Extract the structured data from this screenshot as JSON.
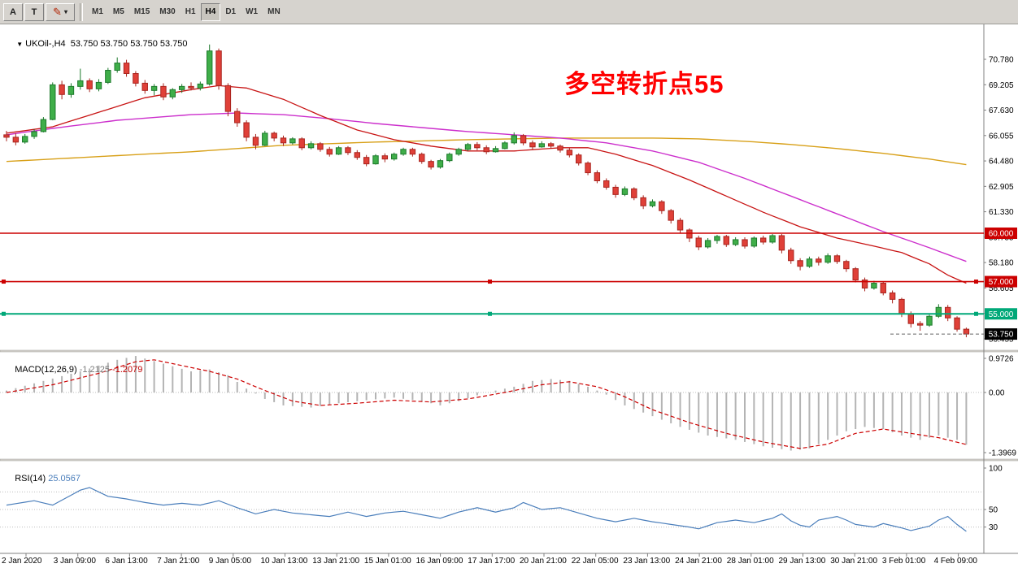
{
  "toolbar": {
    "left_buttons": [
      {
        "id": "text-tool",
        "label": "A"
      },
      {
        "id": "label-tool",
        "label": "T"
      }
    ],
    "draw_dropdown": {
      "icon": "pencil-icon",
      "glyph": "✎",
      "caret": "▾"
    },
    "timeframes": [
      "M1",
      "M5",
      "M15",
      "M30",
      "H1",
      "H4",
      "D1",
      "W1",
      "MN"
    ],
    "active_timeframe": "H4"
  },
  "main_chart": {
    "collapse_arrow": "▼",
    "symbol_label": "UKOil-,H4",
    "ohlc_text": "53.750 53.750 53.750 53.750",
    "annotation": {
      "text": "多空转折点55",
      "color": "#ff0000"
    },
    "price_axis_values": [
      70.78,
      69.205,
      67.63,
      66.055,
      64.48,
      62.905,
      61.33,
      59.755,
      58.18,
      56.605,
      55.03,
      53.455
    ],
    "hlines": [
      {
        "price": 60.0,
        "label": "60.000",
        "color": "#cc0000",
        "handles": false
      },
      {
        "price": 57.0,
        "label": "57.000",
        "color": "#cc0000",
        "handles": true
      },
      {
        "price": 55.0,
        "label": "55.000",
        "color": "#00a878",
        "handles": true
      }
    ],
    "current_price": {
      "value": 53.75,
      "label": "53.750",
      "badge_color": "#000000"
    }
  },
  "macd_panel": {
    "label": "MACD(12,26,9)",
    "value_main": "-1.2125",
    "value_signal": "-1.2079",
    "axis": [
      {
        "text": "0.9726",
        "value": 0.9726
      },
      {
        "text": "0.00",
        "value": 0.0
      },
      {
        "text": "-1.3969",
        "value": -1.3969
      }
    ]
  },
  "rsi_panel": {
    "label": "RSI(14)",
    "value": "25.0567",
    "axis": [
      {
        "text": "100",
        "value": 100
      },
      {
        "text": "50",
        "value": 50
      },
      {
        "text": "30",
        "value": 30
      }
    ],
    "levels": [
      70,
      50,
      30
    ]
  },
  "time_axis": [
    "2 Jan 2020",
    "3 Jan 09:00",
    "6 Jan 13:00",
    "7 Jan 21:00",
    "9 Jan 05:00",
    "10 Jan 13:00",
    "13 Jan 21:00",
    "15 Jan 01:00",
    "16 Jan 09:00",
    "17 Jan 17:00",
    "20 Jan 21:00",
    "22 Jan 05:00",
    "23 Jan 13:00",
    "24 Jan 21:00",
    "28 Jan 01:00",
    "29 Jan 13:00",
    "30 Jan 21:00",
    "3 Feb 01:00",
    "4 Feb 09:00"
  ],
  "colors": {
    "up_fill": "#3fae49",
    "up_stroke": "#1d7a2c",
    "down_fill": "#e04038",
    "down_stroke": "#a8241e",
    "ma_red": "#c81414",
    "ma_magenta": "#cc2fcc",
    "ma_orange": "#d8a018",
    "macd_bar": "#b4b4b4",
    "macd_signal": "#cc0000",
    "rsi_line": "#4a7ebb",
    "axis_text": "#000000",
    "grid_dotted": "#bdbdbd"
  },
  "chart_data": {
    "type": "candlestick+indicators",
    "symbol": "UKOil-",
    "period": "H4",
    "price_range": [
      52.8,
      72.9
    ],
    "candles": [
      [
        66.1,
        66.35,
        65.7,
        65.95
      ],
      [
        65.95,
        66.2,
        65.45,
        65.65
      ],
      [
        65.65,
        66.15,
        65.55,
        66.0
      ],
      [
        66.0,
        66.45,
        65.85,
        66.3
      ],
      [
        66.3,
        67.2,
        66.25,
        67.05
      ],
      [
        67.05,
        69.35,
        67.0,
        69.2
      ],
      [
        69.2,
        69.45,
        68.3,
        68.6
      ],
      [
        68.6,
        69.3,
        68.4,
        69.1
      ],
      [
        69.1,
        70.2,
        68.9,
        69.45
      ],
      [
        69.45,
        69.6,
        68.75,
        68.95
      ],
      [
        68.95,
        69.55,
        68.8,
        69.35
      ],
      [
        69.35,
        70.25,
        69.25,
        70.1
      ],
      [
        70.1,
        70.9,
        69.95,
        70.55
      ],
      [
        70.55,
        70.75,
        69.7,
        69.9
      ],
      [
        69.9,
        70.05,
        69.1,
        69.3
      ],
      [
        69.3,
        69.5,
        68.65,
        68.85
      ],
      [
        68.85,
        69.25,
        68.55,
        69.1
      ],
      [
        69.1,
        69.3,
        68.25,
        68.45
      ],
      [
        68.45,
        69.0,
        68.3,
        68.9
      ],
      [
        68.9,
        69.25,
        68.7,
        69.1
      ],
      [
        69.1,
        69.35,
        68.85,
        69.0
      ],
      [
        69.0,
        69.4,
        68.85,
        69.25
      ],
      [
        69.25,
        71.7,
        69.15,
        71.3
      ],
      [
        71.3,
        71.45,
        68.9,
        69.15
      ],
      [
        69.15,
        69.3,
        67.25,
        67.55
      ],
      [
        67.55,
        67.75,
        66.6,
        66.85
      ],
      [
        66.85,
        67.0,
        65.7,
        65.95
      ],
      [
        65.95,
        66.15,
        65.2,
        65.45
      ],
      [
        65.45,
        66.35,
        65.4,
        66.2
      ],
      [
        66.2,
        66.3,
        65.7,
        65.9
      ],
      [
        65.9,
        66.05,
        65.4,
        65.6
      ],
      [
        65.6,
        65.95,
        65.5,
        65.85
      ],
      [
        65.85,
        65.95,
        65.15,
        65.3
      ],
      [
        65.3,
        65.7,
        65.2,
        65.55
      ],
      [
        65.55,
        65.65,
        65.05,
        65.2
      ],
      [
        65.2,
        65.35,
        64.75,
        64.9
      ],
      [
        64.9,
        65.4,
        64.85,
        65.3
      ],
      [
        65.3,
        65.4,
        64.85,
        65.0
      ],
      [
        65.0,
        65.15,
        64.55,
        64.7
      ],
      [
        64.7,
        64.85,
        64.15,
        64.3
      ],
      [
        64.3,
        64.9,
        64.25,
        64.8
      ],
      [
        64.8,
        64.95,
        64.4,
        64.6
      ],
      [
        64.6,
        65.0,
        64.5,
        64.9
      ],
      [
        64.9,
        65.3,
        64.8,
        65.2
      ],
      [
        65.2,
        65.3,
        64.75,
        64.9
      ],
      [
        64.9,
        65.0,
        64.3,
        64.45
      ],
      [
        64.45,
        64.55,
        63.95,
        64.1
      ],
      [
        64.1,
        64.6,
        64.0,
        64.5
      ],
      [
        64.5,
        65.0,
        64.4,
        64.9
      ],
      [
        64.9,
        65.3,
        64.8,
        65.2
      ],
      [
        65.2,
        65.6,
        65.1,
        65.5
      ],
      [
        65.5,
        65.65,
        65.15,
        65.3
      ],
      [
        65.3,
        65.45,
        64.9,
        65.05
      ],
      [
        65.05,
        65.4,
        65.0,
        65.25
      ],
      [
        65.25,
        65.7,
        65.2,
        65.6
      ],
      [
        65.6,
        66.25,
        65.5,
        66.05
      ],
      [
        66.05,
        66.15,
        65.45,
        65.6
      ],
      [
        65.6,
        65.75,
        65.2,
        65.35
      ],
      [
        65.35,
        65.7,
        65.3,
        65.55
      ],
      [
        65.55,
        65.65,
        65.25,
        65.4
      ],
      [
        65.4,
        65.5,
        65.0,
        65.15
      ],
      [
        65.15,
        65.3,
        64.7,
        64.85
      ],
      [
        64.85,
        64.95,
        64.2,
        64.35
      ],
      [
        64.35,
        64.45,
        63.6,
        63.75
      ],
      [
        63.75,
        63.9,
        63.1,
        63.25
      ],
      [
        63.25,
        63.4,
        62.7,
        62.85
      ],
      [
        62.85,
        63.0,
        62.2,
        62.4
      ],
      [
        62.4,
        62.9,
        62.3,
        62.75
      ],
      [
        62.75,
        62.85,
        62.05,
        62.2
      ],
      [
        62.2,
        62.35,
        61.5,
        61.7
      ],
      [
        61.7,
        62.1,
        61.6,
        61.95
      ],
      [
        61.95,
        62.05,
        61.2,
        61.4
      ],
      [
        61.4,
        61.5,
        60.6,
        60.8
      ],
      [
        60.8,
        60.95,
        60.0,
        60.2
      ],
      [
        60.2,
        60.3,
        59.45,
        59.7
      ],
      [
        59.7,
        59.85,
        58.95,
        59.15
      ],
      [
        59.15,
        59.7,
        59.05,
        59.55
      ],
      [
        59.55,
        59.9,
        59.35,
        59.8
      ],
      [
        59.8,
        59.9,
        59.15,
        59.3
      ],
      [
        59.3,
        59.75,
        59.2,
        59.6
      ],
      [
        59.6,
        59.75,
        59.05,
        59.2
      ],
      [
        59.2,
        59.8,
        59.1,
        59.7
      ],
      [
        59.7,
        59.85,
        59.3,
        59.45
      ],
      [
        59.45,
        59.95,
        59.35,
        59.85
      ],
      [
        59.85,
        59.95,
        58.75,
        58.95
      ],
      [
        58.95,
        59.1,
        58.1,
        58.3
      ],
      [
        58.3,
        58.45,
        57.7,
        57.95
      ],
      [
        57.95,
        58.55,
        57.85,
        58.4
      ],
      [
        58.4,
        58.55,
        58.0,
        58.2
      ],
      [
        58.2,
        58.75,
        58.1,
        58.6
      ],
      [
        58.6,
        58.7,
        58.1,
        58.25
      ],
      [
        58.25,
        58.35,
        57.6,
        57.8
      ],
      [
        57.8,
        57.9,
        56.95,
        57.1
      ],
      [
        57.1,
        57.25,
        56.4,
        56.6
      ],
      [
        56.6,
        57.05,
        56.5,
        56.9
      ],
      [
        56.9,
        57.0,
        56.15,
        56.3
      ],
      [
        56.3,
        56.45,
        55.65,
        55.9
      ],
      [
        55.9,
        56.0,
        54.8,
        55.0
      ],
      [
        55.0,
        55.15,
        54.15,
        54.4
      ],
      [
        54.4,
        54.55,
        53.95,
        54.3
      ],
      [
        54.3,
        54.95,
        54.2,
        54.85
      ],
      [
        54.85,
        55.6,
        54.75,
        55.4
      ],
      [
        55.4,
        55.55,
        54.55,
        54.75
      ],
      [
        54.75,
        54.85,
        53.9,
        54.05
      ],
      [
        54.05,
        54.15,
        53.55,
        53.75
      ]
    ],
    "ma_red_anchors": [
      [
        0,
        66.2
      ],
      [
        5,
        66.6
      ],
      [
        10,
        67.5
      ],
      [
        15,
        68.4
      ],
      [
        20,
        68.9
      ],
      [
        23,
        69.15
      ],
      [
        26,
        69.0
      ],
      [
        30,
        68.3
      ],
      [
        34,
        67.3
      ],
      [
        38,
        66.4
      ],
      [
        42,
        65.8
      ],
      [
        46,
        65.4
      ],
      [
        50,
        65.1
      ],
      [
        55,
        65.1
      ],
      [
        60,
        65.3
      ],
      [
        63,
        65.3
      ],
      [
        66,
        64.9
      ],
      [
        70,
        64.2
      ],
      [
        74,
        63.3
      ],
      [
        78,
        62.3
      ],
      [
        82,
        61.3
      ],
      [
        86,
        60.4
      ],
      [
        90,
        59.7
      ],
      [
        94,
        59.2
      ],
      [
        97,
        58.8
      ],
      [
        100,
        58.1
      ],
      [
        102,
        57.4
      ],
      [
        104,
        56.9
      ]
    ],
    "ma_magenta_anchors": [
      [
        0,
        66.1
      ],
      [
        5,
        66.5
      ],
      [
        12,
        67.0
      ],
      [
        20,
        67.35
      ],
      [
        25,
        67.45
      ],
      [
        30,
        67.35
      ],
      [
        35,
        67.1
      ],
      [
        40,
        66.8
      ],
      [
        45,
        66.55
      ],
      [
        50,
        66.3
      ],
      [
        55,
        66.1
      ],
      [
        60,
        65.9
      ],
      [
        65,
        65.6
      ],
      [
        70,
        65.1
      ],
      [
        75,
        64.4
      ],
      [
        80,
        63.4
      ],
      [
        85,
        62.3
      ],
      [
        90,
        61.2
      ],
      [
        95,
        60.1
      ],
      [
        100,
        59.1
      ],
      [
        104,
        58.25
      ]
    ],
    "ma_orange_anchors": [
      [
        0,
        64.45
      ],
      [
        10,
        64.75
      ],
      [
        20,
        65.05
      ],
      [
        30,
        65.45
      ],
      [
        40,
        65.65
      ],
      [
        50,
        65.8
      ],
      [
        60,
        65.9
      ],
      [
        70,
        65.9
      ],
      [
        75,
        65.85
      ],
      [
        80,
        65.7
      ],
      [
        85,
        65.5
      ],
      [
        90,
        65.25
      ],
      [
        95,
        64.95
      ],
      [
        100,
        64.6
      ],
      [
        104,
        64.25
      ]
    ],
    "macd_range": [
      -1.3969,
      0.9726
    ],
    "macd_main_anchors": [
      [
        0,
        0.05
      ],
      [
        4,
        0.3
      ],
      [
        8,
        0.55
      ],
      [
        12,
        0.85
      ],
      [
        14,
        0.95
      ],
      [
        17,
        0.75
      ],
      [
        20,
        0.55
      ],
      [
        22,
        0.6
      ],
      [
        24,
        0.45
      ],
      [
        26,
        0.1
      ],
      [
        28,
        -0.15
      ],
      [
        30,
        -0.3
      ],
      [
        33,
        -0.35
      ],
      [
        36,
        -0.25
      ],
      [
        39,
        -0.18
      ],
      [
        42,
        -0.12
      ],
      [
        45,
        -0.2
      ],
      [
        47,
        -0.3
      ],
      [
        49,
        -0.2
      ],
      [
        52,
        0.0
      ],
      [
        55,
        0.15
      ],
      [
        57,
        0.3
      ],
      [
        59,
        0.35
      ],
      [
        61,
        0.3
      ],
      [
        63,
        0.15
      ],
      [
        65,
        -0.05
      ],
      [
        67,
        -0.3
      ],
      [
        70,
        -0.55
      ],
      [
        73,
        -0.8
      ],
      [
        76,
        -1.0
      ],
      [
        79,
        -1.1
      ],
      [
        82,
        -1.25
      ],
      [
        85,
        -1.35
      ],
      [
        87,
        -1.3
      ],
      [
        89,
        -1.1
      ],
      [
        91,
        -0.9
      ],
      [
        93,
        -0.8
      ],
      [
        95,
        -0.85
      ],
      [
        97,
        -1.0
      ],
      [
        99,
        -1.1
      ],
      [
        101,
        -1.0
      ],
      [
        103,
        -1.1
      ],
      [
        104,
        -1.2125
      ]
    ],
    "macd_signal_anchors": [
      [
        0,
        0.0
      ],
      [
        5,
        0.2
      ],
      [
        10,
        0.5
      ],
      [
        14,
        0.8
      ],
      [
        16,
        0.85
      ],
      [
        19,
        0.7
      ],
      [
        22,
        0.55
      ],
      [
        25,
        0.35
      ],
      [
        28,
        0.05
      ],
      [
        31,
        -0.2
      ],
      [
        34,
        -0.3
      ],
      [
        38,
        -0.25
      ],
      [
        42,
        -0.18
      ],
      [
        46,
        -0.22
      ],
      [
        50,
        -0.15
      ],
      [
        54,
        0.0
      ],
      [
        58,
        0.2
      ],
      [
        61,
        0.28
      ],
      [
        64,
        0.15
      ],
      [
        67,
        -0.1
      ],
      [
        70,
        -0.4
      ],
      [
        74,
        -0.7
      ],
      [
        78,
        -0.95
      ],
      [
        82,
        -1.15
      ],
      [
        86,
        -1.3
      ],
      [
        89,
        -1.2
      ],
      [
        92,
        -0.95
      ],
      [
        95,
        -0.85
      ],
      [
        98,
        -0.95
      ],
      [
        101,
        -1.05
      ],
      [
        104,
        -1.2079
      ]
    ],
    "rsi_range": [
      0,
      100
    ],
    "rsi_anchors": [
      [
        0,
        55
      ],
      [
        3,
        60
      ],
      [
        5,
        55
      ],
      [
        8,
        72
      ],
      [
        9,
        75
      ],
      [
        11,
        65
      ],
      [
        13,
        62
      ],
      [
        15,
        58
      ],
      [
        17,
        55
      ],
      [
        19,
        57
      ],
      [
        21,
        55
      ],
      [
        23,
        60
      ],
      [
        25,
        52
      ],
      [
        27,
        45
      ],
      [
        29,
        50
      ],
      [
        31,
        46
      ],
      [
        33,
        44
      ],
      [
        35,
        42
      ],
      [
        37,
        47
      ],
      [
        39,
        42
      ],
      [
        41,
        46
      ],
      [
        43,
        48
      ],
      [
        45,
        44
      ],
      [
        47,
        40
      ],
      [
        49,
        47
      ],
      [
        51,
        52
      ],
      [
        53,
        47
      ],
      [
        55,
        52
      ],
      [
        56,
        58
      ],
      [
        58,
        50
      ],
      [
        60,
        52
      ],
      [
        62,
        46
      ],
      [
        64,
        40
      ],
      [
        66,
        36
      ],
      [
        68,
        40
      ],
      [
        70,
        36
      ],
      [
        72,
        33
      ],
      [
        74,
        30
      ],
      [
        75,
        28
      ],
      [
        77,
        35
      ],
      [
        79,
        38
      ],
      [
        81,
        35
      ],
      [
        83,
        40
      ],
      [
        84,
        45
      ],
      [
        85,
        37
      ],
      [
        86,
        32
      ],
      [
        87,
        30
      ],
      [
        88,
        38
      ],
      [
        90,
        42
      ],
      [
        91,
        38
      ],
      [
        92,
        33
      ],
      [
        94,
        30
      ],
      [
        95,
        34
      ],
      [
        97,
        29
      ],
      [
        98,
        26
      ],
      [
        100,
        31
      ],
      [
        101,
        38
      ],
      [
        102,
        42
      ],
      [
        103,
        33
      ],
      [
        104,
        25.06
      ]
    ]
  }
}
